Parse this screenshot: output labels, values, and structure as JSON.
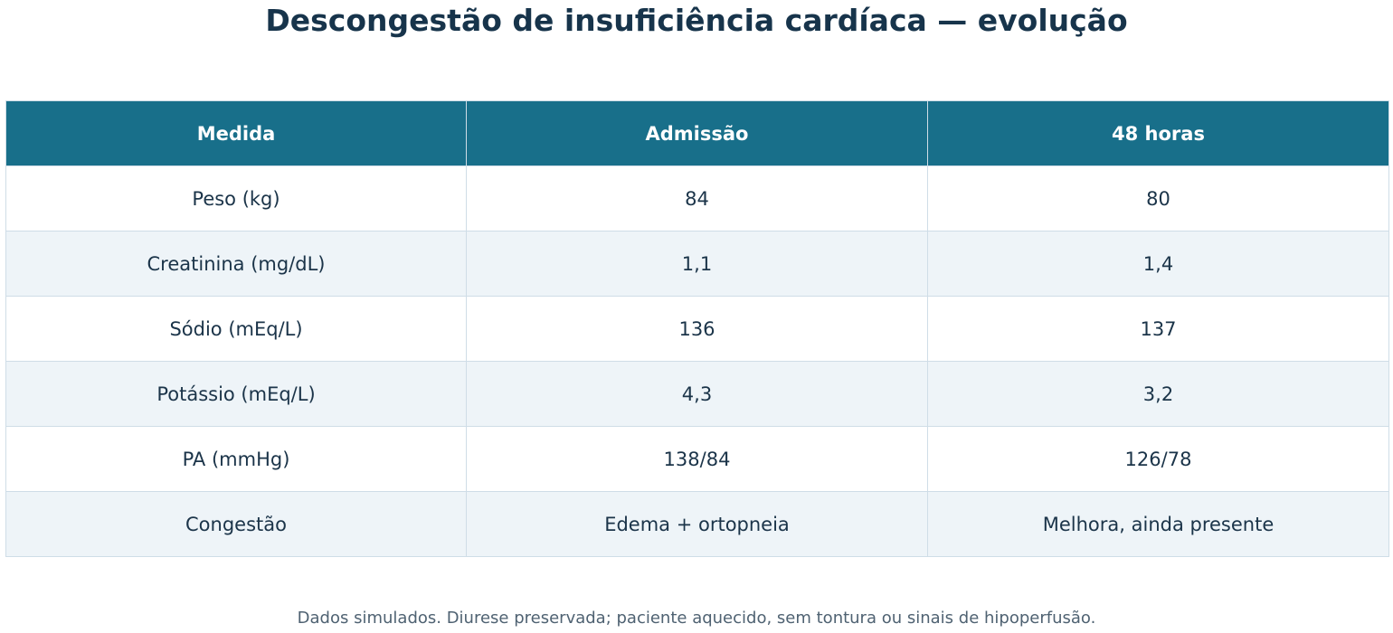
{
  "chart_data": {
    "type": "table",
    "title": "Descongestão de insuficiência cardíaca — evolução",
    "columns": [
      "Medida",
      "Admissão",
      "48 horas"
    ],
    "rows": [
      [
        "Peso (kg)",
        "84",
        "80"
      ],
      [
        "Creatinina (mg/dL)",
        "1,1",
        "1,4"
      ],
      [
        "Sódio (mEq/L)",
        "136",
        "137"
      ],
      [
        "Potássio (mEq/L)",
        "4,3",
        "3,2"
      ],
      [
        "PA (mmHg)",
        "138/84",
        "126/78"
      ],
      [
        "Congestão",
        "Edema + ortopneia",
        "Melhora, ainda presente"
      ]
    ],
    "footnote": "Dados simulados. Diurese preservada; paciente aquecido, sem tontura ou sinais de hipoperfusão.",
    "colors": {
      "header_bg": "#186f8a",
      "header_text": "#ffffff",
      "row_alt_bg": "#eef4f8",
      "text": "#1b3449"
    }
  }
}
